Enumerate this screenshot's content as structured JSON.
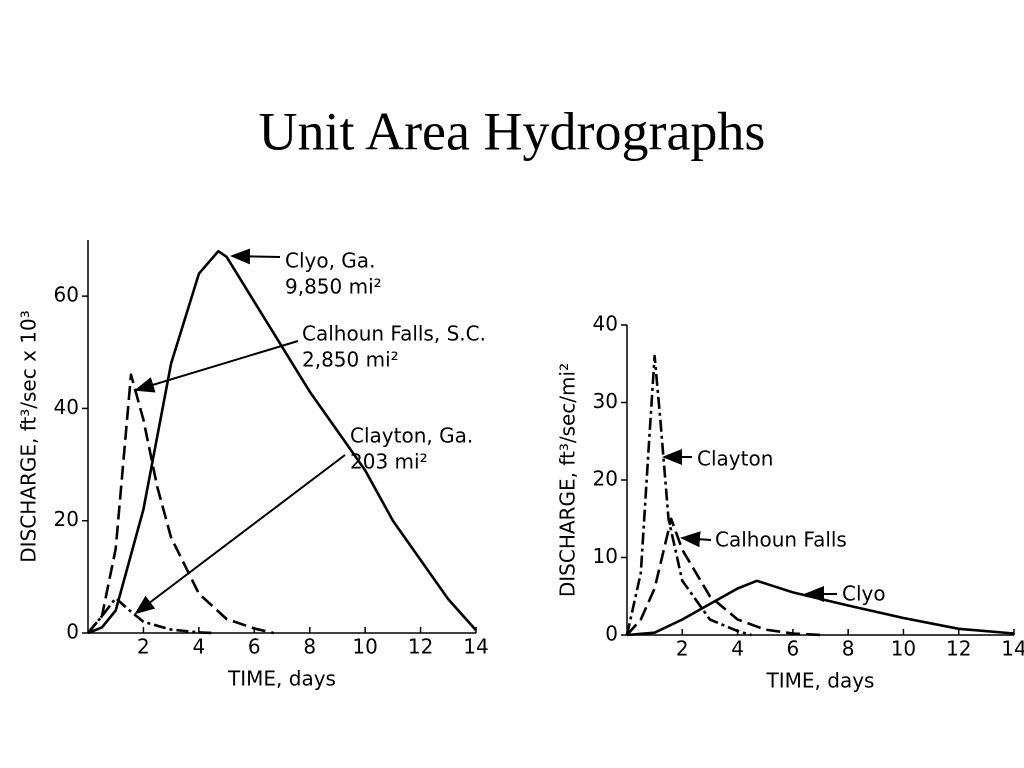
{
  "title": "Unit Area Hydrographs",
  "chart_data": [
    {
      "type": "line",
      "xlabel": "TIME, days",
      "ylabel": "DISCHARGE, ft³/sec x 10³",
      "xlim": [
        0,
        14
      ],
      "ylim": [
        0,
        70
      ],
      "xticks": [
        2,
        4,
        6,
        8,
        10,
        12,
        14
      ],
      "yticks": [
        0,
        20,
        40,
        60
      ],
      "series": [
        {
          "name": "Clyo",
          "color": "#000000",
          "line_style": "solid",
          "x": [
            0,
            0.5,
            1,
            2,
            3,
            4,
            4.7,
            5,
            6,
            7,
            8,
            9,
            10,
            11,
            12,
            13,
            14
          ],
          "values": [
            0,
            1,
            4,
            22,
            48,
            64,
            68,
            67,
            59,
            51,
            43,
            36,
            29,
            20,
            13,
            6,
            0.5
          ]
        },
        {
          "name": "Calhoun Falls",
          "color": "#000000",
          "line_style": "dashed",
          "x": [
            0,
            0.5,
            1,
            1.55,
            2,
            2.5,
            3,
            4,
            5,
            6,
            6.7
          ],
          "values": [
            0,
            3,
            15,
            46,
            38,
            26,
            17,
            7,
            2.5,
            0.8,
            0
          ]
        },
        {
          "name": "Clayton",
          "color": "#000000",
          "line_style": "dashdot",
          "x": [
            0,
            0.5,
            1,
            1.5,
            2,
            3,
            4,
            4.5
          ],
          "values": [
            0,
            3,
            6.2,
            4,
            2,
            0.6,
            0.1,
            0
          ]
        }
      ],
      "annotations": [
        {
          "lines": [
            "Clyo, Ga.",
            "9,850 mi²"
          ]
        },
        {
          "lines": [
            "Calhoun Falls, S.C.",
            "2,850 mi²"
          ]
        },
        {
          "lines": [
            "Clayton, Ga.",
            "203 mi²"
          ]
        }
      ]
    },
    {
      "type": "line",
      "xlabel": "TIME, days",
      "ylabel": "DISCHARGE, ft³/sec/mi²",
      "xlim": [
        0,
        14
      ],
      "ylim": [
        0,
        40
      ],
      "xticks": [
        2,
        4,
        6,
        8,
        10,
        12,
        14
      ],
      "yticks": [
        0,
        10,
        20,
        30,
        40
      ],
      "series": [
        {
          "name": "Clayton",
          "color": "#000000",
          "line_style": "dashdot",
          "x": [
            0,
            0.5,
            0.8,
            1,
            1.2,
            1.5,
            2,
            3,
            4,
            4.5
          ],
          "values": [
            0,
            8,
            25,
            36,
            28,
            15,
            7,
            2,
            0.5,
            0
          ]
        },
        {
          "name": "Calhoun Falls",
          "color": "#000000",
          "line_style": "dashed",
          "x": [
            0,
            0.5,
            1,
            1.6,
            2,
            3,
            4,
            5,
            6,
            7
          ],
          "values": [
            0,
            2,
            6,
            15,
            11,
            5,
            2,
            0.7,
            0.2,
            0
          ]
        },
        {
          "name": "Clyo",
          "color": "#000000",
          "line_style": "solid",
          "x": [
            0,
            1,
            2,
            3,
            4,
            4.7,
            6,
            8,
            10,
            12,
            14
          ],
          "values": [
            0,
            0.3,
            2,
            4,
            6,
            7,
            5.5,
            3.8,
            2.2,
            0.8,
            0.2
          ]
        }
      ],
      "annotations": [
        {
          "lines": [
            "Clayton"
          ]
        },
        {
          "lines": [
            "Calhoun Falls"
          ]
        },
        {
          "lines": [
            "Clyo"
          ]
        }
      ]
    }
  ]
}
